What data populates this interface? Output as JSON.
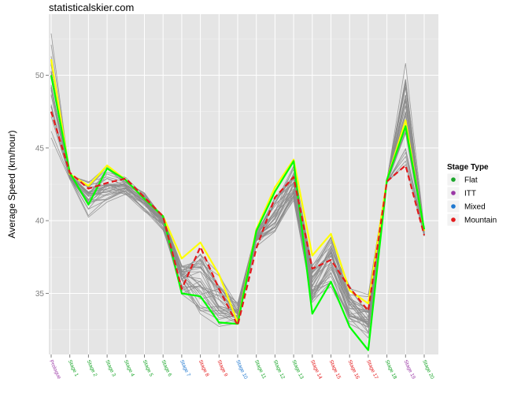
{
  "site": "statisticalskier.com",
  "chart_data": {
    "type": "line",
    "ylabel": "Average Speed (km/hour)",
    "xlabel": "",
    "ylim": [
      30.8,
      54.2
    ],
    "yticks": [
      35,
      40,
      45,
      50
    ],
    "grid": true,
    "legend_position": "right",
    "legend_title": "Stage Type",
    "legend": [
      {
        "label": "Flat",
        "color": "#1aa62a"
      },
      {
        "label": "ITT",
        "color": "#9a37a5"
      },
      {
        "label": "Mixed",
        "color": "#1f78d0"
      },
      {
        "label": "Mountain",
        "color": "#e41a1c"
      }
    ],
    "categories": [
      "Prologue",
      "Stage 1",
      "Stage 2",
      "Stage 3",
      "Stage 4",
      "Stage 5",
      "Stage 6",
      "Stage 7",
      "Stage 8",
      "Stage 9",
      "Stage 10",
      "Stage 11",
      "Stage 12",
      "Stage 13",
      "Stage 14",
      "Stage 15",
      "Stage 16",
      "Stage 17",
      "Stage 18",
      "Stage 19",
      "Stage 20"
    ],
    "category_types": [
      "ITT",
      "Flat",
      "Flat",
      "Flat",
      "Flat",
      "Flat",
      "Flat",
      "Mixed",
      "Mountain",
      "Mountain",
      "Mixed",
      "Flat",
      "Flat",
      "Flat",
      "Mountain",
      "Mountain",
      "Mountain",
      "Mountain",
      "Flat",
      "ITT",
      "Flat"
    ],
    "gray_band": {
      "color": "#8c8c8c",
      "upper": [
        53.3,
        43.3,
        43.2,
        44.1,
        43.0,
        42.0,
        40.4,
        37.5,
        38.4,
        36.8,
        34.5,
        39.4,
        42.2,
        44.1,
        37.8,
        39.4,
        35.8,
        35.0,
        42.9,
        51.2,
        39.5
      ],
      "lower": [
        45.7,
        42.8,
        40.2,
        40.9,
        41.7,
        40.6,
        39.3,
        34.8,
        33.2,
        32.2,
        32.6,
        38.2,
        38.8,
        41.0,
        33.6,
        35.2,
        32.3,
        31.1,
        42.5,
        42.8,
        38.9
      ],
      "count": 34
    },
    "series": [
      {
        "name": "",
        "color": "#ffff00",
        "style": "solid",
        "values": [
          51.1,
          43.2,
          42.4,
          43.8,
          42.8,
          41.5,
          40.3,
          37.4,
          38.5,
          36.3,
          33.0,
          39.4,
          42.3,
          44.2,
          37.6,
          39.1,
          35.2,
          34.3,
          42.8,
          46.9,
          39.3
        ]
      },
      {
        "name": "",
        "color": "#00ff00",
        "style": "solid",
        "values": [
          50.0,
          43.3,
          41.1,
          43.6,
          42.8,
          41.5,
          40.3,
          35.0,
          34.8,
          33.0,
          32.9,
          39.3,
          42.0,
          44.1,
          33.6,
          35.8,
          32.7,
          31.1,
          42.8,
          46.5,
          39.4
        ]
      },
      {
        "name": "",
        "color": "#e41a1c",
        "style": "dashed",
        "values": [
          47.5,
          43.3,
          42.2,
          42.6,
          42.9,
          41.6,
          40.3,
          35.3,
          38.2,
          35.3,
          32.8,
          38.1,
          41.6,
          43.0,
          36.7,
          37.3,
          35.4,
          33.8,
          42.7,
          43.8,
          39.0
        ]
      }
    ]
  }
}
